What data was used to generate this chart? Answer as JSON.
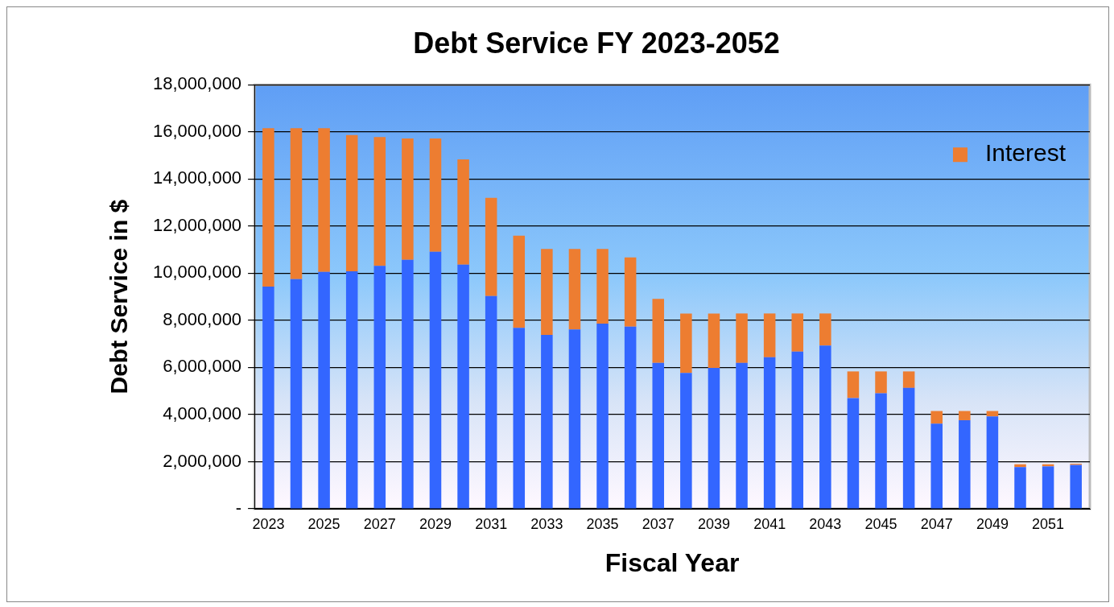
{
  "chart_data": {
    "type": "bar",
    "title": "Debt Service FY 2023-2052",
    "xlabel": "Fiscal Year",
    "ylabel": "Debt Service in $",
    "categories": [
      "2023",
      null,
      "2025",
      null,
      "2027",
      null,
      "2029",
      null,
      "2031",
      null,
      "2033",
      null,
      "2035",
      null,
      "2037",
      null,
      "2039",
      null,
      "2041",
      null,
      "2043",
      null,
      "2045",
      null,
      "2047",
      null,
      "2049",
      null,
      "2051",
      null
    ],
    "stacked": true,
    "series": [
      {
        "color": "#3366ff",
        "values": [
          9430000,
          9750000,
          10050000,
          10080000,
          10310000,
          10570000,
          10910000,
          10360000,
          9030000,
          7680000,
          7380000,
          7610000,
          7860000,
          7730000,
          6190000,
          5770000,
          5980000,
          6190000,
          6430000,
          6670000,
          6930000,
          4700000,
          4900000,
          5130000,
          3610000,
          3760000,
          3920000,
          1770000,
          1800000,
          1860000
        ]
      },
      {
        "name": "Interest",
        "color": "#ed7d31",
        "values": [
          6720000,
          6400000,
          6100000,
          5780000,
          5470000,
          5150000,
          4810000,
          4470000,
          4170000,
          3910000,
          3650000,
          3420000,
          3170000,
          2940000,
          2720000,
          2520000,
          2310000,
          2100000,
          1860000,
          1620000,
          1360000,
          1130000,
          930000,
          700000,
          540000,
          390000,
          230000,
          120000,
          90000,
          50000
        ]
      }
    ],
    "ylim": [
      0,
      18000000
    ],
    "yticks": [
      {
        "value": 0,
        "label": "-"
      },
      {
        "value": 2000000,
        "label": "2,000,000"
      },
      {
        "value": 4000000,
        "label": "4,000,000"
      },
      {
        "value": 6000000,
        "label": "6,000,000"
      },
      {
        "value": 8000000,
        "label": "8,000,000"
      },
      {
        "value": 10000000,
        "label": "10,000,000"
      },
      {
        "value": 12000000,
        "label": "12,000,000"
      },
      {
        "value": 14000000,
        "label": "14,000,000"
      },
      {
        "value": 16000000,
        "label": "16,000,000"
      },
      {
        "value": 18000000,
        "label": "18,000,000"
      }
    ],
    "grid": "y",
    "legend": "top right"
  }
}
